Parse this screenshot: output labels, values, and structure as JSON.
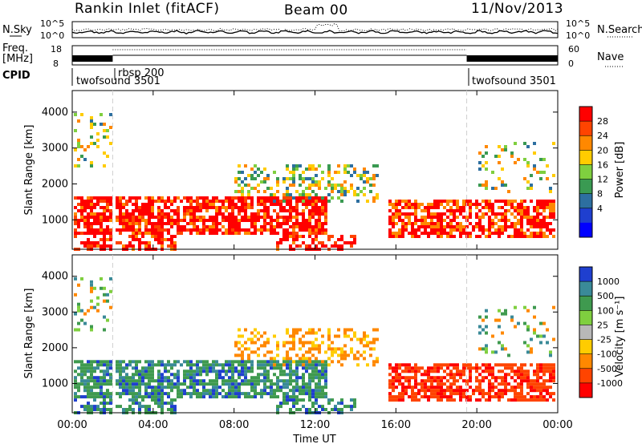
{
  "header": {
    "station": "Rankin Inlet (fitACF)",
    "beam": "Beam 00",
    "date": "11/Nov/2013"
  },
  "noise_panel": {
    "left_label": "N.Sky",
    "right_label": "N.Search",
    "left_ticks": [
      "10^5",
      "10^0"
    ],
    "right_ticks": [
      "10^5",
      "10^0"
    ]
  },
  "freq_panel": {
    "left_label_1": "Freq.",
    "left_label_2": "[MHz]",
    "right_label": "Nave",
    "left_ticks": [
      "18",
      "8"
    ],
    "right_ticks": [
      "60",
      "0"
    ]
  },
  "cpid_panel": {
    "label": "CPID",
    "segments": [
      {
        "name": "twofsound 3501",
        "start_hour": 0.0,
        "end_hour": 2.0
      },
      {
        "name": "rbsp 200",
        "start_hour": 2.0,
        "end_hour": 19.5
      },
      {
        "name": "twofsound 3501",
        "start_hour": 19.5,
        "end_hour": 24.0
      }
    ]
  },
  "chart_data": [
    {
      "type": "heatmap",
      "name": "power",
      "ylabel": "Slant Range [km]",
      "ylim": [
        180,
        4600
      ],
      "yticks": [
        "1000",
        "2000",
        "3000",
        "4000"
      ],
      "colorbar_label": "Power [dB]",
      "colorbar_ticks": [
        "28",
        "24",
        "20",
        "16",
        "12",
        "8",
        "4"
      ],
      "colorbar_colors": [
        "#ff0000",
        "#ff4400",
        "#ff8800",
        "#ffcc00",
        "#7fcf3f",
        "#3a9a52",
        "#2d6fa0",
        "#1f3fcf",
        "#0000ff"
      ],
      "xlim": [
        0,
        24
      ]
    },
    {
      "type": "heatmap",
      "name": "velocity",
      "ylabel": "Slant Range [km]",
      "ylim": [
        180,
        4600
      ],
      "yticks": [
        "1000",
        "2000",
        "3000",
        "4000"
      ],
      "colorbar_label": "Velocity [m s⁻¹]",
      "colorbar_ticks": [
        "1000",
        "500",
        "100",
        "25",
        "-25",
        "-100",
        "-500",
        "-1000"
      ],
      "colorbar_colors": [
        "#1f3fcf",
        "#3a8a98",
        "#3f9a4f",
        "#7fcf3f",
        "#b8b8b8",
        "#ffcc00",
        "#ff8800",
        "#ff4400",
        "#ff0000"
      ],
      "xlabel": "Time UT",
      "xlim": [
        0,
        24
      ],
      "xticks": [
        "00:00",
        "04:00",
        "08:00",
        "12:00",
        "16:00",
        "20:00",
        "00:00"
      ]
    }
  ]
}
